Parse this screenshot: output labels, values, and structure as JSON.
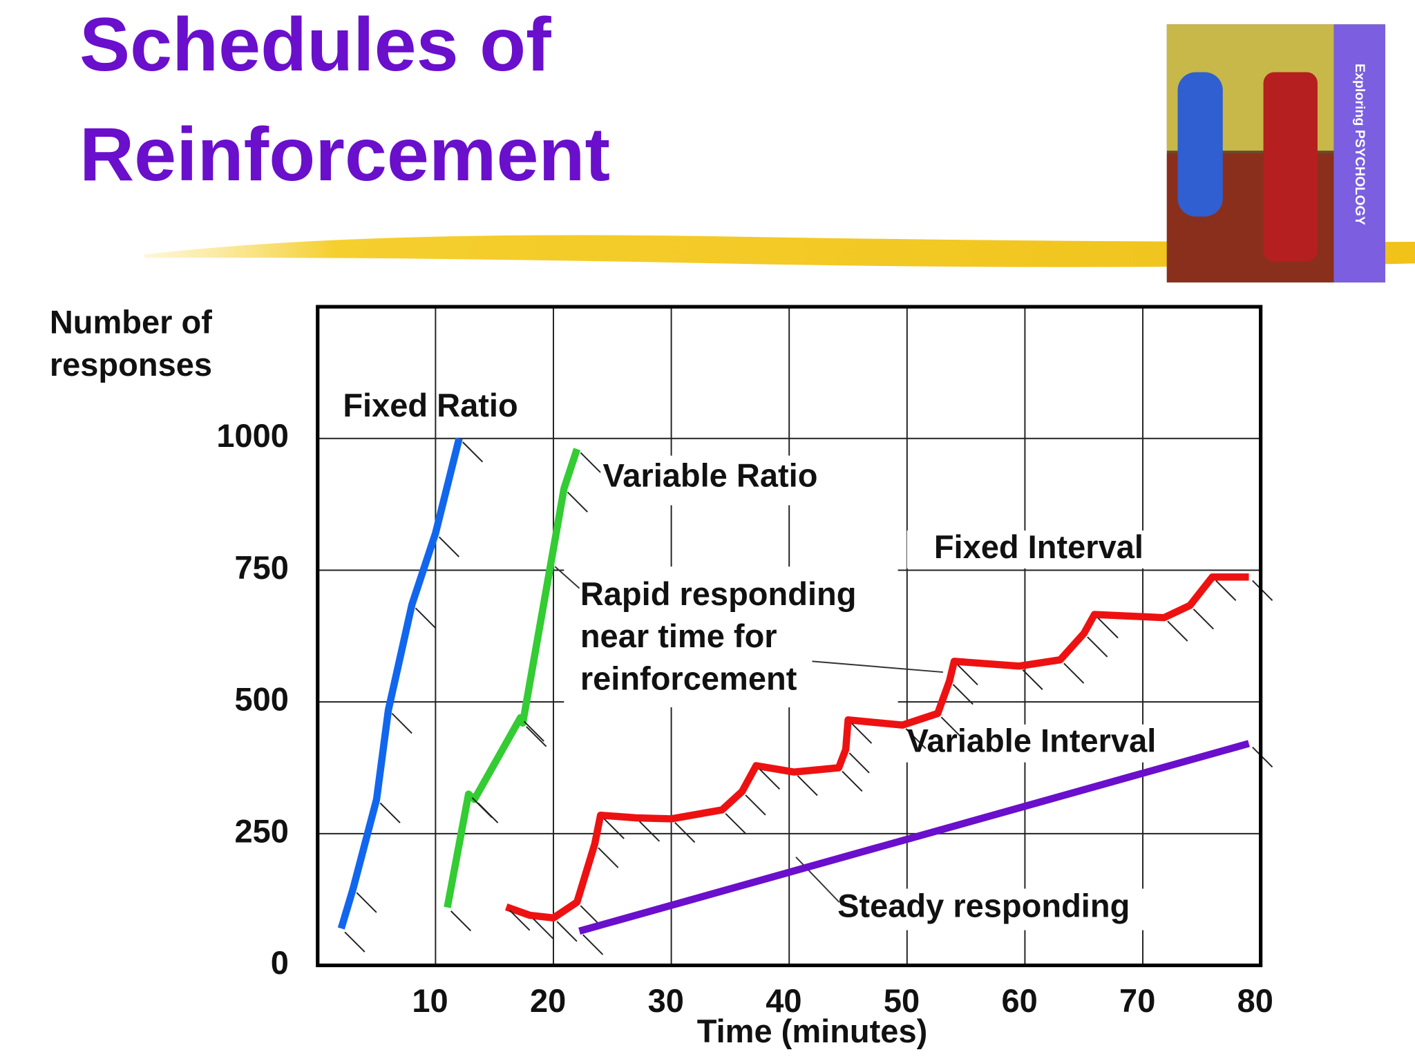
{
  "title_lines": [
    "Schedules of",
    "Reinforcement"
  ],
  "cover_text": "Exploring PSYCHOLOGY",
  "chart_data": {
    "type": "line",
    "y_label_lines": [
      "Number of",
      "responses"
    ],
    "x_label": "Time (minutes)",
    "xlim": [
      0,
      80
    ],
    "xticks": [
      10,
      20,
      30,
      40,
      50,
      60,
      70,
      80
    ],
    "ylim": [
      0,
      1250
    ],
    "yticks": [
      0,
      250,
      500,
      750,
      1000
    ],
    "grid": true,
    "series": [
      {
        "name": "Fixed Ratio",
        "color": "#1166ee",
        "x": [
          2,
          3,
          5,
          6,
          8,
          10,
          12
        ],
        "values": [
          70,
          145,
          315,
          485,
          685,
          820,
          1000
        ]
      },
      {
        "name": "Variable Ratio",
        "color": "#33cc33",
        "x": [
          11,
          12.8,
          13.3,
          17.2,
          17.4,
          20.9,
          22
        ],
        "values": [
          110,
          325,
          315,
          470,
          460,
          905,
          980
        ]
      },
      {
        "name": "Fixed Interval",
        "color": "#ee1111",
        "x": [
          16,
          18,
          20,
          22,
          23.5,
          24,
          27,
          30,
          34.3,
          36,
          37.2,
          40.4,
          44.2,
          44.8,
          45,
          49.6,
          52.6,
          53.6,
          54,
          59.5,
          63,
          65,
          65.9,
          71.8,
          74,
          75.9,
          79
        ],
        "values": [
          111,
          95,
          90,
          120,
          230,
          285,
          280,
          278,
          295,
          330,
          379,
          367,
          375,
          410,
          466,
          456,
          478,
          540,
          577,
          568,
          580,
          630,
          666,
          660,
          683,
          737,
          737
        ]
      },
      {
        "name": "Variable Interval",
        "color": "#6a0fcc",
        "x": [
          22.2,
          79
        ],
        "values": [
          65,
          421
        ]
      }
    ],
    "annotations": [
      [
        "Rapid responding",
        "near time for",
        "reinforcement"
      ],
      "Steady responding"
    ]
  }
}
